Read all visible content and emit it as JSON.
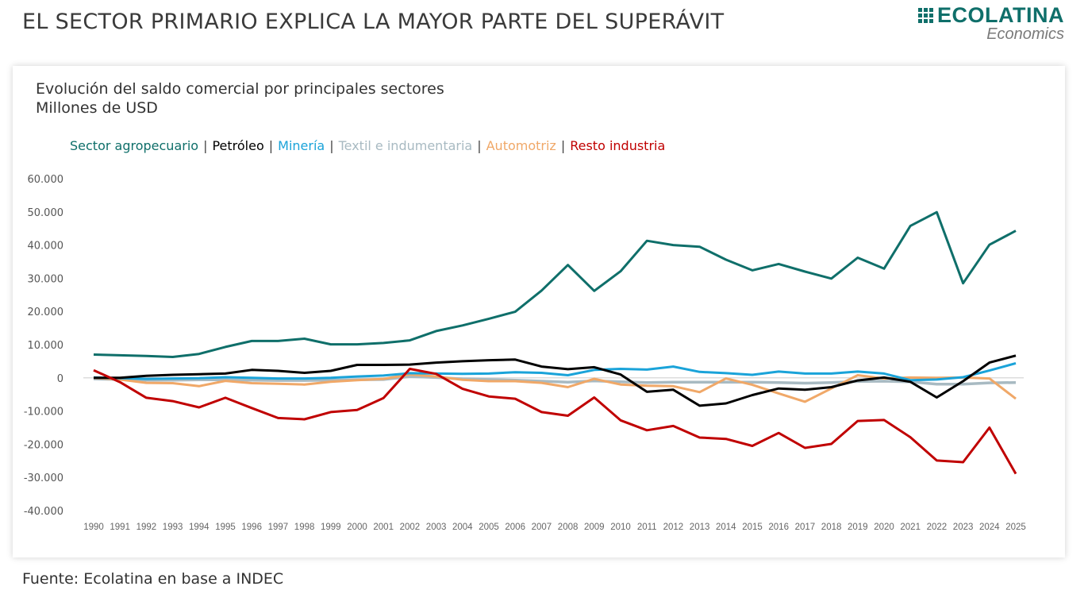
{
  "header": {
    "title": "EL SECTOR PRIMARIO EXPLICA LA MAYOR PARTE DEL SUPERÁVIT",
    "logo_name": "ECOLATINA",
    "logo_sub": "Economics"
  },
  "footer": {
    "source": "Fuente: Ecolatina en base a INDEC"
  },
  "chart_data": {
    "type": "line",
    "title": "Evolución del saldo comercial por principales sectores",
    "subtitle": "Millones de USD",
    "xlabel": "",
    "ylabel": "",
    "ylim": [
      -40000,
      60000
    ],
    "yticks": [
      60000,
      50000,
      40000,
      30000,
      20000,
      10000,
      0,
      -10000,
      -20000,
      -30000,
      -40000
    ],
    "ytick_labels": [
      "60.000",
      "50.000",
      "40.000",
      "30.000",
      "20.000",
      "10.000",
      "0",
      "-10.000",
      "-20.000",
      "-30.000",
      "-40.000"
    ],
    "grid": false,
    "legend_position": "top-left",
    "x": [
      "1990",
      "1991",
      "1992",
      "1993",
      "1994",
      "1995",
      "1996",
      "1997",
      "1998",
      "1999",
      "2000",
      "2001",
      "2002",
      "2003",
      "2004",
      "2005",
      "2006",
      "2007",
      "2008",
      "2009",
      "2010",
      "2011",
      "2012",
      "2013",
      "2014",
      "2015",
      "2016",
      "2017",
      "2018",
      "2019",
      "2020",
      "2021",
      "2022",
      "2023",
      "2024",
      "2025"
    ],
    "series": [
      {
        "name": "Sector agropecuario",
        "color": "#0f6f6a",
        "values": [
          7000,
          6800,
          6600,
          6300,
          7200,
          9300,
          11100,
          11100,
          11800,
          10100,
          10100,
          10500,
          11300,
          14100,
          15800,
          17800,
          19900,
          26300,
          34000,
          26200,
          32100,
          41300,
          40000,
          39500,
          35600,
          32400,
          34300,
          32000,
          29900,
          36200,
          32900,
          45800,
          49900,
          28500,
          40100,
          44300
        ]
      },
      {
        "name": "Petróleo",
        "color": "#000000",
        "values": [
          0,
          0,
          600,
          900,
          1100,
          1300,
          2400,
          2100,
          1500,
          2100,
          3900,
          3900,
          4000,
          4600,
          5000,
          5300,
          5500,
          3400,
          2600,
          3200,
          1000,
          -4200,
          -3600,
          -8400,
          -7700,
          -5200,
          -3200,
          -3600,
          -2800,
          -800,
          100,
          -1200,
          -5900,
          -1000,
          4600,
          6700
        ]
      },
      {
        "name": "Minería",
        "color": "#1aa3d9",
        "values": [
          100,
          -100,
          -300,
          -200,
          -100,
          200,
          0,
          -200,
          -200,
          0,
          400,
          700,
          1400,
          1300,
          1200,
          1300,
          1700,
          1500,
          800,
          2400,
          2700,
          2500,
          3400,
          1800,
          1400,
          900,
          1900,
          1300,
          1300,
          1900,
          1300,
          -700,
          -500,
          200,
          2200,
          4400
        ]
      },
      {
        "name": "Textil e indumentaria",
        "color": "#a8bac2",
        "values": [
          -300,
          -500,
          -700,
          -700,
          -600,
          -600,
          -700,
          -800,
          -800,
          -700,
          -600,
          -500,
          400,
          100,
          -300,
          -500,
          -700,
          -1000,
          -1300,
          -900,
          -1200,
          -1400,
          -1300,
          -1300,
          -1300,
          -1300,
          -1400,
          -1600,
          -1400,
          -1100,
          -1000,
          -1200,
          -1900,
          -1900,
          -1500,
          -1400
        ]
      },
      {
        "name": "Automotriz",
        "color": "#f0a868",
        "values": [
          0,
          -500,
          -1500,
          -1600,
          -2500,
          -900,
          -1600,
          -1800,
          -2000,
          -1200,
          -700,
          -300,
          1000,
          400,
          -600,
          -1000,
          -1000,
          -1500,
          -2800,
          -300,
          -2000,
          -2400,
          -2500,
          -4300,
          -200,
          -2100,
          -4700,
          -7200,
          -3200,
          800,
          -200,
          100,
          0,
          100,
          -200,
          -6300
        ]
      },
      {
        "name": "Resto industria",
        "color": "#c00000",
        "values": [
          2300,
          -1300,
          -6000,
          -7000,
          -8900,
          -6000,
          -9100,
          -12100,
          -12500,
          -10300,
          -9700,
          -6100,
          2700,
          1200,
          -3300,
          -5600,
          -6300,
          -10300,
          -11400,
          -5900,
          -12800,
          -15800,
          -14500,
          -18000,
          -18400,
          -20500,
          -16600,
          -21100,
          -19900,
          -13000,
          -12700,
          -17900,
          -24900,
          -25400,
          -15000,
          -28900
        ]
      }
    ]
  }
}
